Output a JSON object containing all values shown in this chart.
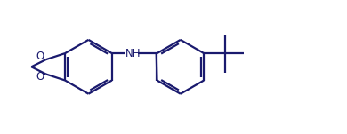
{
  "bond_color": "#1a1a6e",
  "bg_color": "#ffffff",
  "line_width": 1.6,
  "figsize": [
    3.9,
    1.51
  ],
  "dpi": 100,
  "xlim": [
    0,
    10
  ],
  "ylim": [
    0,
    3.87
  ]
}
